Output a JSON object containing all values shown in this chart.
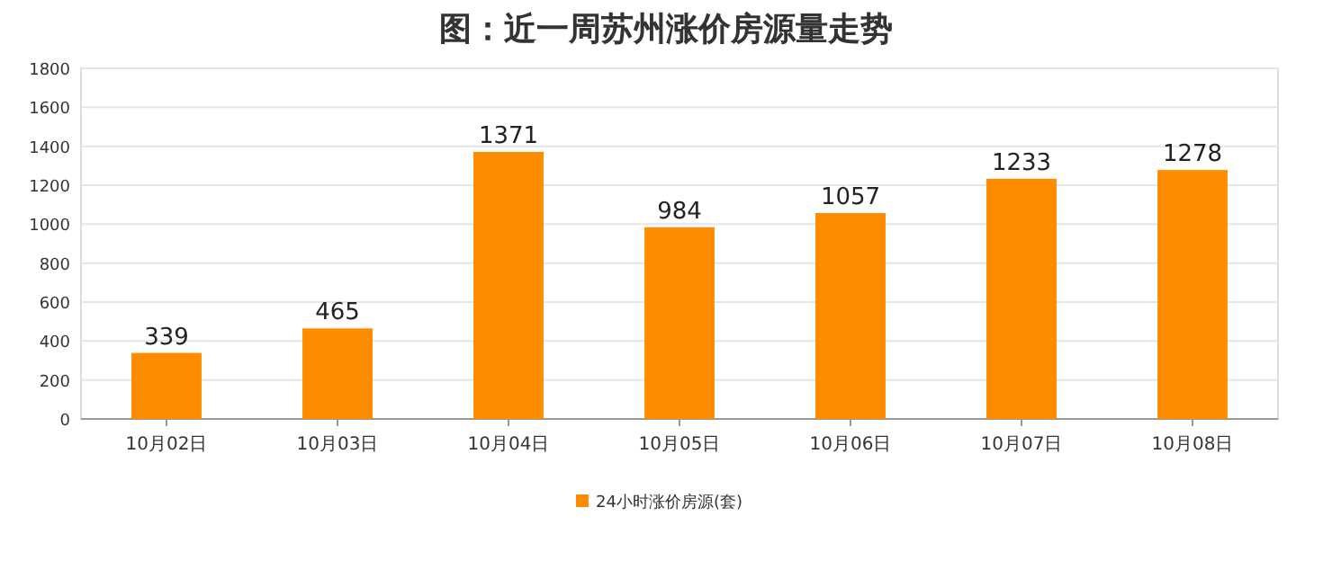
{
  "chart_data": {
    "type": "bar",
    "title": "图：近一周苏州涨价房源量走势",
    "categories": [
      "10月02日",
      "10月03日",
      "10月04日",
      "10月05日",
      "10月06日",
      "10月07日",
      "10月08日"
    ],
    "series": [
      {
        "name": "24小时涨价房源(套)",
        "color": "#ff8c00",
        "values": [
          339,
          465,
          1371,
          984,
          1057,
          1233,
          1278
        ]
      }
    ],
    "ylim": [
      0,
      1800
    ],
    "yticks": [
      0,
      200,
      400,
      600,
      800,
      1000,
      1200,
      1400,
      1600,
      1800
    ],
    "grid": "y",
    "legend": "bottom",
    "data_labels": true
  }
}
